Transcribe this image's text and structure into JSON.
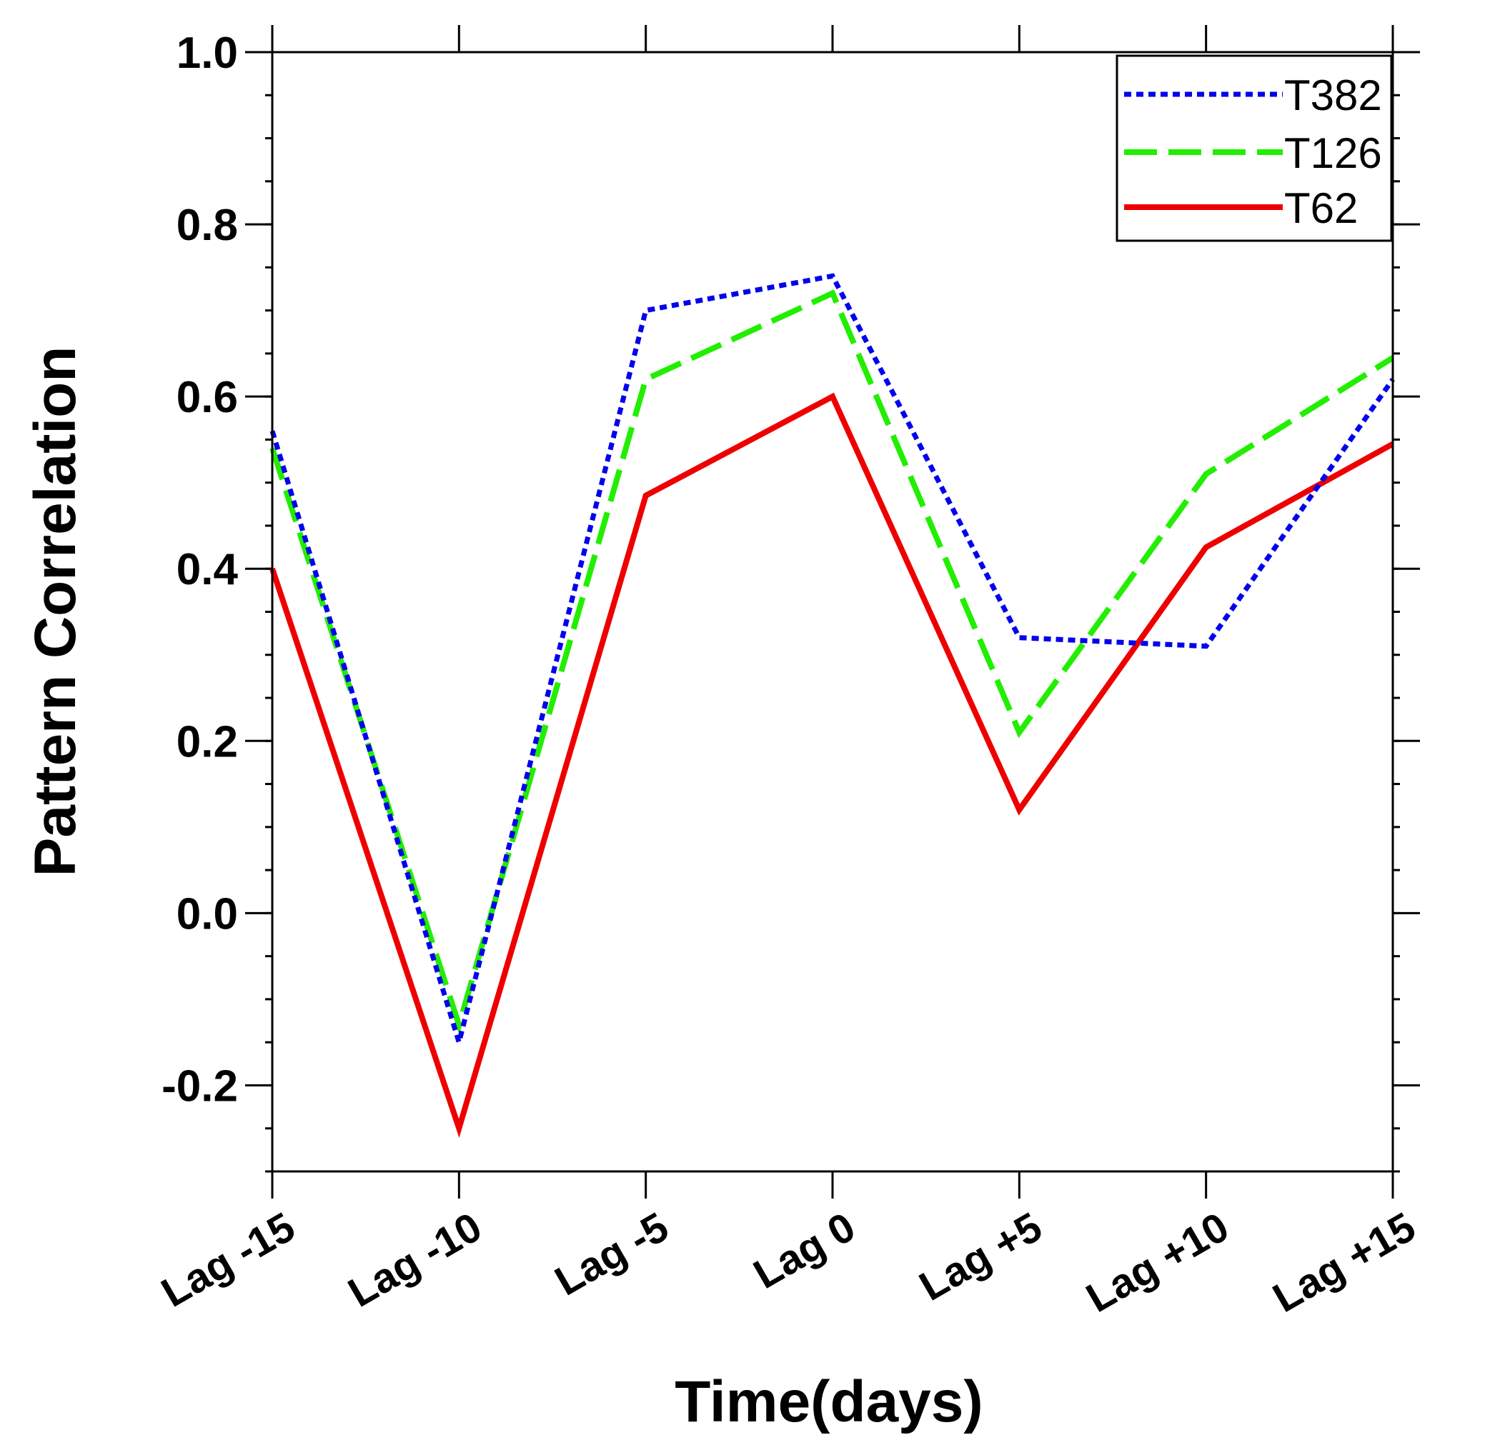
{
  "chart_data": {
    "type": "line",
    "title": "",
    "xlabel": "Time(days)",
    "ylabel": "Pattern Correlation",
    "categories": [
      "Lag -15",
      "Lag -10",
      "Lag -5",
      "Lag 0",
      "Lag +5",
      "Lag +10",
      "Lag +15"
    ],
    "ylim": [
      -0.3,
      1.0
    ],
    "yticks": [
      -0.2,
      0.0,
      0.2,
      0.4,
      0.6,
      0.8,
      1.0
    ],
    "ytick_labels": [
      "-0.2",
      "0.0",
      "0.2",
      "0.4",
      "0.6",
      "0.8",
      "1.0"
    ],
    "minor_ytick_step": 0.05,
    "grid": false,
    "legend_position": "top-right",
    "series": [
      {
        "name": "T382",
        "color": "#0000ee",
        "style": "dotted",
        "values": [
          0.56,
          -0.15,
          0.7,
          0.74,
          0.32,
          0.31,
          0.62
        ]
      },
      {
        "name": "T126",
        "color": "#22ee00",
        "style": "dashed",
        "values": [
          0.54,
          -0.13,
          0.62,
          0.72,
          0.21,
          0.51,
          0.645
        ]
      },
      {
        "name": "T62",
        "color": "#ee0000",
        "style": "solid",
        "values": [
          0.4,
          -0.25,
          0.485,
          0.6,
          0.12,
          0.425,
          0.545
        ]
      }
    ]
  }
}
